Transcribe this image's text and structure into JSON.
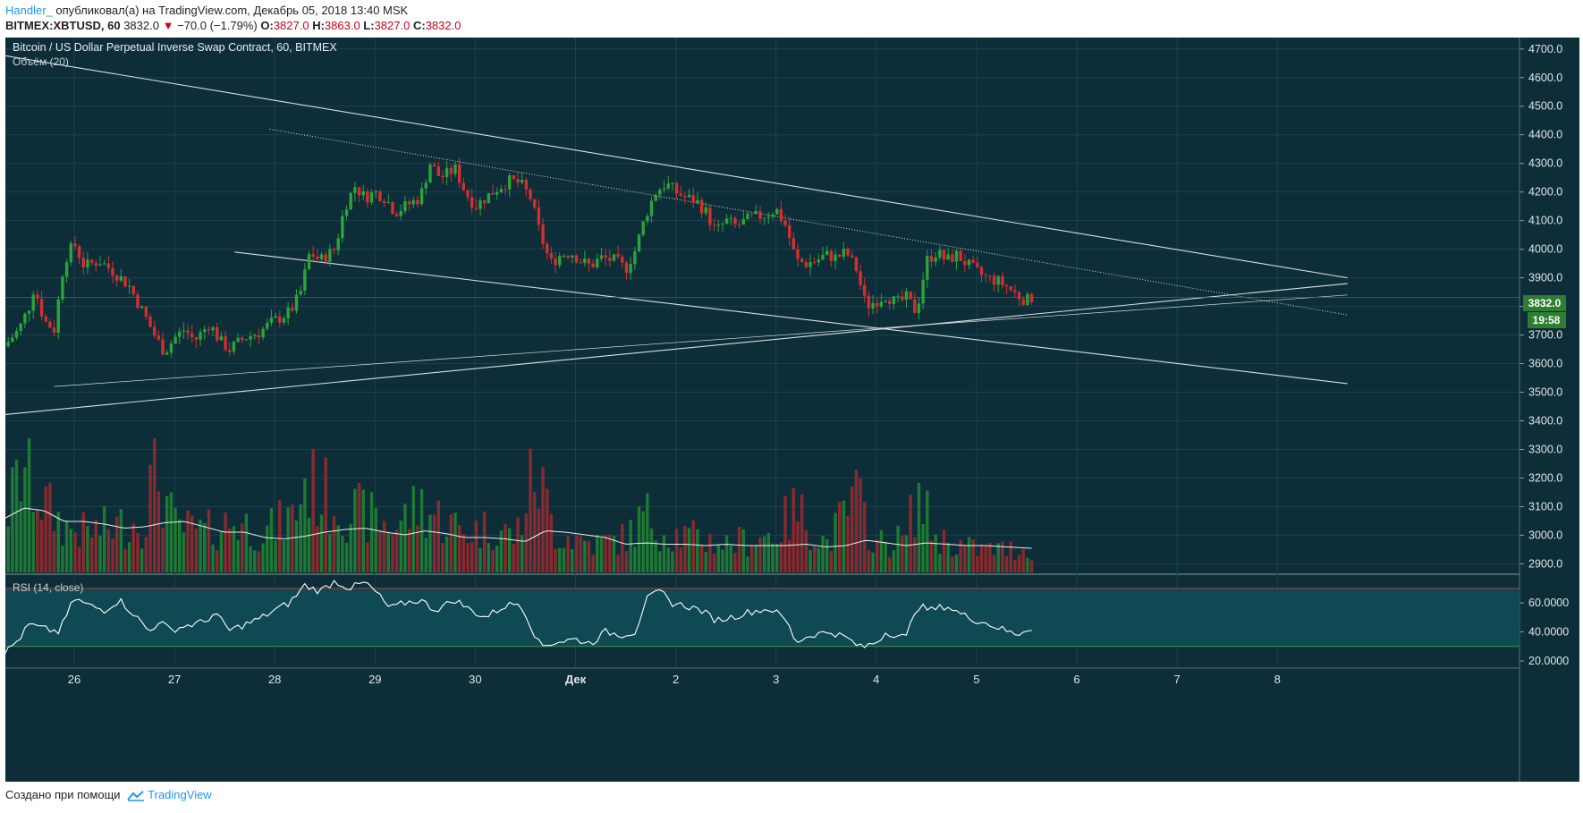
{
  "header": {
    "author": "Handler_",
    "published_text": "опубликовал(а) на TradingView.com, Декабрь 05, 2018 13:40 MSK",
    "symbol": "BITMEX:XBTUSD, 60",
    "last": "3832.0",
    "change": "−70.0 (−1.79%)",
    "o_label": "O:",
    "o": "3827.0",
    "h_label": "H:",
    "h": "3863.0",
    "l_label": "L:",
    "l": "3827.0",
    "c_label": "C:",
    "c": "3832.0"
  },
  "footer": {
    "created_with": "Создано при помощи",
    "brand": "TradingView"
  },
  "colors": {
    "background": "#0d2d38",
    "up": "#2ea33a",
    "down": "#d42f2f",
    "up_volume": "#1e7a32",
    "down_volume": "#8a2a2e",
    "rsi_band": "#0f4954",
    "price_tag": "#2e7d32",
    "line": "#d8dde0"
  },
  "chart_data": {
    "type": "candlestick",
    "title": "Bitcoin / US Dollar Perpetual Inverse Swap Contract, 60, BITMEX",
    "volume_label": "Объём (20)",
    "rsi_label": "RSI (14, close)",
    "x_ticks": [
      "26",
      "27",
      "28",
      "29",
      "30",
      "Дек",
      "2",
      "3",
      "4",
      "5",
      "6",
      "7",
      "8"
    ],
    "price_ticks": [
      "4700.0",
      "4600.0",
      "4500.0",
      "4400.0",
      "4300.0",
      "4200.0",
      "4100.0",
      "4000.0",
      "3900.0",
      "3800.0",
      "3700.0",
      "3600.0",
      "3500.0",
      "3400.0",
      "3300.0",
      "3200.0",
      "3100.0",
      "3000.0",
      "2900.0"
    ],
    "price_range": [
      2870,
      4740
    ],
    "rsi_ticks": [
      "60.0000",
      "40.0000",
      "20.0000"
    ],
    "rsi_band": [
      30,
      70
    ],
    "current_price": "3832.0",
    "countdown": "19:58",
    "price_path": [
      [
        25.3,
        3660
      ],
      [
        25.45,
        3720
      ],
      [
        25.55,
        3800
      ],
      [
        25.6,
        3870
      ],
      [
        25.7,
        3750
      ],
      [
        25.8,
        3720
      ],
      [
        25.9,
        3960
      ],
      [
        26.0,
        4020
      ],
      [
        26.1,
        3940
      ],
      [
        26.25,
        3960
      ],
      [
        26.4,
        3920
      ],
      [
        26.55,
        3870
      ],
      [
        26.7,
        3770
      ],
      [
        26.8,
        3700
      ],
      [
        26.9,
        3640
      ],
      [
        27.0,
        3690
      ],
      [
        27.1,
        3720
      ],
      [
        27.2,
        3680
      ],
      [
        27.35,
        3740
      ],
      [
        27.45,
        3680
      ],
      [
        27.55,
        3650
      ],
      [
        27.7,
        3690
      ],
      [
        27.85,
        3710
      ],
      [
        27.95,
        3740
      ],
      [
        28.15,
        3780
      ],
      [
        28.25,
        3840
      ],
      [
        28.35,
        3990
      ],
      [
        28.45,
        3960
      ],
      [
        28.6,
        4000
      ],
      [
        28.7,
        4150
      ],
      [
        28.8,
        4220
      ],
      [
        28.9,
        4180
      ],
      [
        29.0,
        4200
      ],
      [
        29.1,
        4180
      ],
      [
        29.2,
        4130
      ],
      [
        29.3,
        4150
      ],
      [
        29.45,
        4180
      ],
      [
        29.55,
        4300
      ],
      [
        29.65,
        4250
      ],
      [
        29.8,
        4280
      ],
      [
        29.9,
        4200
      ],
      [
        30.0,
        4150
      ],
      [
        30.1,
        4180
      ],
      [
        30.25,
        4220
      ],
      [
        30.35,
        4240
      ],
      [
        30.45,
        4230
      ],
      [
        30.55,
        4180
      ],
      [
        30.65,
        4050
      ],
      [
        30.75,
        3950
      ],
      [
        30.85,
        3980
      ],
      [
        30.95,
        3990
      ],
      [
        31.05,
        3960
      ],
      [
        31.15,
        3940
      ],
      [
        31.25,
        3970
      ],
      [
        31.4,
        3960
      ],
      [
        31.5,
        3930
      ],
      [
        31.6,
        4000
      ],
      [
        31.7,
        4120
      ],
      [
        31.8,
        4200
      ],
      [
        31.9,
        4230
      ],
      [
        32.0,
        4200
      ],
      [
        32.1,
        4180
      ],
      [
        32.2,
        4170
      ],
      [
        32.3,
        4130
      ],
      [
        32.4,
        4060
      ],
      [
        32.5,
        4100
      ],
      [
        32.6,
        4080
      ],
      [
        32.75,
        4110
      ],
      [
        32.9,
        4120
      ],
      [
        33.0,
        4140
      ],
      [
        33.1,
        4080
      ],
      [
        33.2,
        3960
      ],
      [
        33.3,
        3950
      ],
      [
        33.4,
        3960
      ],
      [
        33.5,
        3980
      ],
      [
        33.6,
        3970
      ],
      [
        33.7,
        3990
      ],
      [
        33.8,
        3930
      ],
      [
        33.9,
        3800
      ],
      [
        34.0,
        3820
      ],
      [
        34.1,
        3840
      ],
      [
        34.2,
        3810
      ],
      [
        34.3,
        3830
      ],
      [
        34.4,
        3780
      ],
      [
        34.5,
        3960
      ],
      [
        34.6,
        3990
      ],
      [
        34.7,
        3960
      ],
      [
        34.8,
        3980
      ],
      [
        34.9,
        3950
      ],
      [
        35.0,
        3920
      ],
      [
        35.1,
        3900
      ],
      [
        35.2,
        3890
      ],
      [
        35.3,
        3870
      ],
      [
        35.4,
        3840
      ],
      [
        35.5,
        3820
      ],
      [
        35.55,
        3832
      ]
    ],
    "volume_profile": [
      [
        25.3,
        0.45
      ],
      [
        25.5,
        0.95
      ],
      [
        25.7,
        0.6
      ],
      [
        25.9,
        0.4
      ],
      [
        26.1,
        0.35
      ],
      [
        26.4,
        0.4
      ],
      [
        26.7,
        0.45
      ],
      [
        26.8,
        0.95
      ],
      [
        27.0,
        0.4
      ],
      [
        27.3,
        0.35
      ],
      [
        27.6,
        0.45
      ],
      [
        27.9,
        0.35
      ],
      [
        28.2,
        0.5
      ],
      [
        28.3,
        0.8
      ],
      [
        28.7,
        0.55
      ],
      [
        28.9,
        0.5
      ],
      [
        29.2,
        0.4
      ],
      [
        29.45,
        0.6
      ],
      [
        29.6,
        0.5
      ],
      [
        29.9,
        0.35
      ],
      [
        30.2,
        0.4
      ],
      [
        30.4,
        0.3
      ],
      [
        30.6,
        0.9
      ],
      [
        30.8,
        0.35
      ],
      [
        31.0,
        0.3
      ],
      [
        31.2,
        0.25
      ],
      [
        31.5,
        0.3
      ],
      [
        31.7,
        0.5
      ],
      [
        31.9,
        0.35
      ],
      [
        32.2,
        0.3
      ],
      [
        32.5,
        0.25
      ],
      [
        32.8,
        0.3
      ],
      [
        33.0,
        0.35
      ],
      [
        33.2,
        0.55
      ],
      [
        33.5,
        0.25
      ],
      [
        33.8,
        0.65
      ],
      [
        34.0,
        0.25
      ],
      [
        34.3,
        0.3
      ],
      [
        34.4,
        0.7
      ],
      [
        34.6,
        0.3
      ],
      [
        34.8,
        0.25
      ],
      [
        35.0,
        0.2
      ],
      [
        35.3,
        0.2
      ],
      [
        35.55,
        0.2
      ]
    ],
    "volume_ma_path": [
      [
        25.3,
        0.4
      ],
      [
        25.5,
        0.48
      ],
      [
        25.7,
        0.46
      ],
      [
        25.9,
        0.38
      ],
      [
        26.1,
        0.38
      ],
      [
        26.3,
        0.36
      ],
      [
        26.5,
        0.33
      ],
      [
        26.7,
        0.34
      ],
      [
        26.9,
        0.37
      ],
      [
        27.1,
        0.38
      ],
      [
        27.3,
        0.34
      ],
      [
        27.5,
        0.3
      ],
      [
        27.7,
        0.3
      ],
      [
        27.9,
        0.26
      ],
      [
        28.1,
        0.25
      ],
      [
        28.3,
        0.27
      ],
      [
        28.5,
        0.3
      ],
      [
        28.7,
        0.32
      ],
      [
        28.9,
        0.33
      ],
      [
        29.1,
        0.3
      ],
      [
        29.3,
        0.28
      ],
      [
        29.5,
        0.31
      ],
      [
        29.7,
        0.29
      ],
      [
        29.9,
        0.26
      ],
      [
        30.1,
        0.26
      ],
      [
        30.3,
        0.25
      ],
      [
        30.5,
        0.23
      ],
      [
        30.7,
        0.31
      ],
      [
        30.9,
        0.3
      ],
      [
        31.1,
        0.28
      ],
      [
        31.3,
        0.26
      ],
      [
        31.5,
        0.21
      ],
      [
        31.7,
        0.22
      ],
      [
        31.9,
        0.21
      ],
      [
        32.1,
        0.21
      ],
      [
        32.3,
        0.2
      ],
      [
        32.5,
        0.21
      ],
      [
        32.7,
        0.2
      ],
      [
        32.9,
        0.2
      ],
      [
        33.1,
        0.2
      ],
      [
        33.3,
        0.21
      ],
      [
        33.5,
        0.19
      ],
      [
        33.7,
        0.2
      ],
      [
        33.9,
        0.24
      ],
      [
        34.1,
        0.22
      ],
      [
        34.3,
        0.2
      ],
      [
        34.5,
        0.22
      ],
      [
        34.7,
        0.21
      ],
      [
        34.9,
        0.2
      ],
      [
        35.1,
        0.2
      ],
      [
        35.3,
        0.19
      ],
      [
        35.55,
        0.18
      ]
    ],
    "rsi_path": [
      [
        25.3,
        25
      ],
      [
        25.45,
        35
      ],
      [
        25.55,
        45
      ],
      [
        25.7,
        42
      ],
      [
        25.85,
        40
      ],
      [
        26.0,
        63
      ],
      [
        26.15,
        58
      ],
      [
        26.3,
        55
      ],
      [
        26.45,
        62
      ],
      [
        26.6,
        52
      ],
      [
        26.75,
        40
      ],
      [
        26.85,
        48
      ],
      [
        26.95,
        41
      ],
      [
        27.1,
        44
      ],
      [
        27.3,
        47
      ],
      [
        27.4,
        53
      ],
      [
        27.55,
        41
      ],
      [
        27.7,
        45
      ],
      [
        27.85,
        49
      ],
      [
        28.0,
        55
      ],
      [
        28.15,
        60
      ],
      [
        28.3,
        72
      ],
      [
        28.45,
        68
      ],
      [
        28.6,
        75
      ],
      [
        28.75,
        70
      ],
      [
        28.9,
        74
      ],
      [
        29.0,
        68
      ],
      [
        29.15,
        56
      ],
      [
        29.3,
        60
      ],
      [
        29.45,
        62
      ],
      [
        29.6,
        55
      ],
      [
        29.8,
        62
      ],
      [
        29.95,
        55
      ],
      [
        30.1,
        50
      ],
      [
        30.3,
        58
      ],
      [
        30.45,
        60
      ],
      [
        30.55,
        45
      ],
      [
        30.65,
        30
      ],
      [
        30.8,
        33
      ],
      [
        31.0,
        35
      ],
      [
        31.15,
        32
      ],
      [
        31.3,
        40
      ],
      [
        31.45,
        38
      ],
      [
        31.6,
        40
      ],
      [
        31.7,
        62
      ],
      [
        31.85,
        68
      ],
      [
        31.95,
        60
      ],
      [
        32.1,
        58
      ],
      [
        32.25,
        55
      ],
      [
        32.4,
        48
      ],
      [
        32.55,
        50
      ],
      [
        32.75,
        54
      ],
      [
        32.95,
        56
      ],
      [
        33.1,
        48
      ],
      [
        33.2,
        33
      ],
      [
        33.35,
        38
      ],
      [
        33.55,
        40
      ],
      [
        33.7,
        36
      ],
      [
        33.85,
        29
      ],
      [
        34.0,
        33
      ],
      [
        34.1,
        40
      ],
      [
        34.3,
        36
      ],
      [
        34.4,
        58
      ],
      [
        34.55,
        55
      ],
      [
        34.7,
        58
      ],
      [
        34.85,
        52
      ],
      [
        35.0,
        48
      ],
      [
        35.1,
        46
      ],
      [
        35.25,
        42
      ],
      [
        35.4,
        38
      ],
      [
        35.5,
        42
      ],
      [
        35.55,
        43
      ]
    ],
    "trend_lines": [
      {
        "name": "upper-channel",
        "from": [
          25.25,
          4680
        ],
        "to": [
          38.7,
          3900
        ]
      },
      {
        "name": "upper-dotted",
        "from": [
          27.95,
          4420
        ],
        "to": [
          38.7,
          3770
        ]
      },
      {
        "name": "lower-channel",
        "from": [
          27.6,
          3990
        ],
        "to": [
          38.7,
          3530
        ]
      },
      {
        "name": "rising-support",
        "from": [
          25.25,
          3420
        ],
        "to": [
          38.7,
          3880
        ]
      },
      {
        "name": "rising-thin",
        "from": [
          25.8,
          3520
        ],
        "to": [
          38.7,
          3840
        ]
      }
    ]
  }
}
